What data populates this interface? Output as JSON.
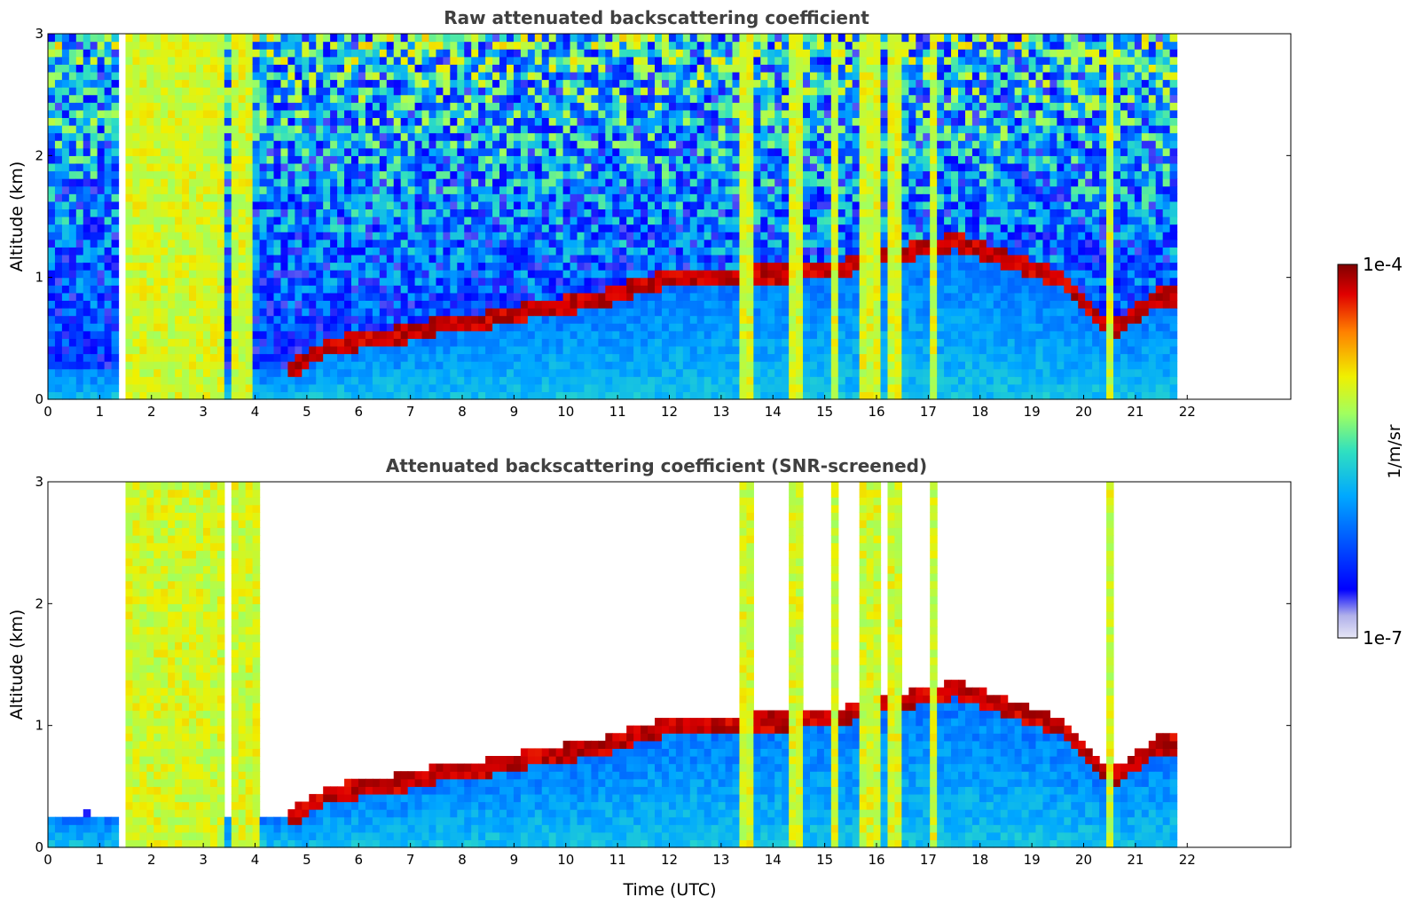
{
  "chart_data": [
    {
      "type": "heatmap",
      "title": "Raw attenuated backscattering coefficient",
      "xlabel": "",
      "ylabel": "Altitude (km)",
      "xlim": [
        0,
        24
      ],
      "ylim": [
        0,
        3
      ],
      "x_ticks": [
        "0",
        "1",
        "2",
        "3",
        "4",
        "5",
        "6",
        "7",
        "8",
        "9",
        "10",
        "11",
        "12",
        "13",
        "14",
        "15",
        "16",
        "17",
        "18",
        "19",
        "20",
        "21",
        "22"
      ],
      "y_ticks": [
        "0",
        "1",
        "2",
        "3"
      ],
      "data_end_x": 21.8,
      "missing_column_x": [
        1.4,
        1.5
      ],
      "low_cloud_layer": [
        {
          "x": 4.7,
          "alt": 0.25
        },
        {
          "x": 5.5,
          "alt": 0.45
        },
        {
          "x": 6.5,
          "alt": 0.5
        },
        {
          "x": 7.5,
          "alt": 0.6
        },
        {
          "x": 8.5,
          "alt": 0.65
        },
        {
          "x": 9.5,
          "alt": 0.75
        },
        {
          "x": 10.5,
          "alt": 0.8
        },
        {
          "x": 12.0,
          "alt": 1.0
        },
        {
          "x": 15.0,
          "alt": 1.05
        },
        {
          "x": 17.5,
          "alt": 1.3
        },
        {
          "x": 19.5,
          "alt": 1.0
        },
        {
          "x": 20.5,
          "alt": 0.55
        },
        {
          "x": 21.5,
          "alt": 0.85
        }
      ],
      "precip_columns_x": [
        1.6,
        2.0,
        2.3,
        2.7,
        3.0,
        3.3,
        3.7,
        13.5,
        14.4,
        15.2,
        15.8,
        16.0,
        16.3,
        17.1,
        20.5
      ]
    },
    {
      "type": "heatmap",
      "title": "Attenuated backscattering coefficient (SNR-screened)",
      "xlabel": "Time (UTC)",
      "ylabel": "Altitude (km)",
      "xlim": [
        0,
        24
      ],
      "ylim": [
        0,
        3
      ],
      "x_ticks": [
        "0",
        "1",
        "2",
        "3",
        "4",
        "5",
        "6",
        "7",
        "8",
        "9",
        "10",
        "11",
        "12",
        "13",
        "14",
        "15",
        "16",
        "17",
        "18",
        "19",
        "20",
        "21",
        "22"
      ],
      "y_ticks": [
        "0",
        "1",
        "2",
        "3"
      ],
      "data_end_x": 21.8,
      "screened": true
    }
  ],
  "colorbar": {
    "label": "1/m/sr",
    "max_label": "1e-4",
    "min_label": "1e-7",
    "scale": "log",
    "range": [
      1e-07,
      0.0001
    ],
    "colormap": [
      "#e6e6f5",
      "#b0b0ea",
      "#0000ff",
      "#0050ff",
      "#00a8ff",
      "#30e0c0",
      "#a0ff60",
      "#f0f000",
      "#ff8000",
      "#e00000",
      "#800000"
    ]
  }
}
